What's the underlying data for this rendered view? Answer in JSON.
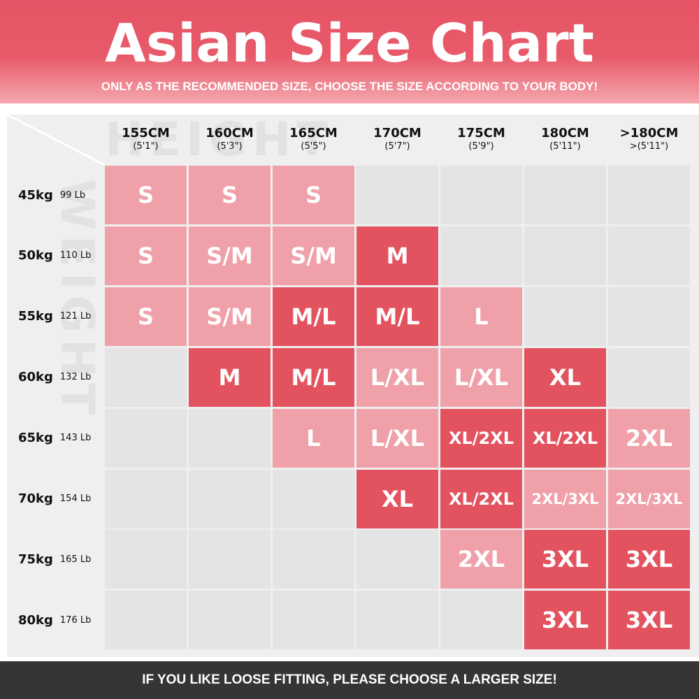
{
  "header": {
    "title": "Asian Size Chart",
    "subtitle": "ONLY AS THE RECOMMENDED SIZE, CHOOSE THE SIZE ACCORDING TO YOUR BODY!"
  },
  "watermarks": {
    "horizontal": "HEIGHT",
    "vertical": "WEIGHT"
  },
  "table": {
    "columns": [
      {
        "height": "155CM",
        "feet": "(5'1\")"
      },
      {
        "height": "160CM",
        "feet": "(5'3\")"
      },
      {
        "height": "165CM",
        "feet": "(5'5\")"
      },
      {
        "height": "170CM",
        "feet": "(5'7\")"
      },
      {
        "height": "175CM",
        "feet": "(5'9\")"
      },
      {
        "height": "180CM",
        "feet": "(5'11\")"
      },
      {
        "height": ">180CM",
        "feet": ">(5'11\")"
      }
    ],
    "rows": [
      {
        "weight": "45kg",
        "pounds": "99 Lb",
        "cells": [
          {
            "size": "S",
            "color": "#f0a0a8"
          },
          {
            "size": "S",
            "color": "#f0a0a8"
          },
          {
            "size": "S",
            "color": "#f0a0a8"
          },
          null,
          null,
          null,
          null
        ]
      },
      {
        "weight": "50kg",
        "pounds": "110 Lb",
        "cells": [
          {
            "size": "S",
            "color": "#f0a0a8"
          },
          {
            "size": "S/M",
            "color": "#f0a0a8"
          },
          {
            "size": "S/M",
            "color": "#f0a0a8"
          },
          {
            "size": "M",
            "color": "#e3535f"
          },
          null,
          null,
          null
        ]
      },
      {
        "weight": "55kg",
        "pounds": "121 Lb",
        "cells": [
          {
            "size": "S",
            "color": "#f0a0a8"
          },
          {
            "size": "S/M",
            "color": "#f0a0a8"
          },
          {
            "size": "M/L",
            "color": "#e3535f"
          },
          {
            "size": "M/L",
            "color": "#e3535f"
          },
          {
            "size": "L",
            "color": "#f0a0a8"
          },
          null,
          null
        ]
      },
      {
        "weight": "60kg",
        "pounds": "132 Lb",
        "cells": [
          null,
          {
            "size": "M",
            "color": "#e3535f"
          },
          {
            "size": "M/L",
            "color": "#e3535f"
          },
          {
            "size": "L/XL",
            "color": "#f0a0a8"
          },
          {
            "size": "L/XL",
            "color": "#f0a0a8"
          },
          {
            "size": "XL",
            "color": "#e3535f"
          },
          null
        ]
      },
      {
        "weight": "65kg",
        "pounds": "143 Lb",
        "cells": [
          null,
          null,
          {
            "size": "L",
            "color": "#f0a0a8"
          },
          {
            "size": "L/XL",
            "color": "#f0a0a8"
          },
          {
            "size": "XL/2XL",
            "color": "#e3535f"
          },
          {
            "size": "XL/2XL",
            "color": "#e3535f"
          },
          {
            "size": "2XL",
            "color": "#f0a0a8"
          }
        ]
      },
      {
        "weight": "70kg",
        "pounds": "154 Lb",
        "cells": [
          null,
          null,
          null,
          {
            "size": "XL",
            "color": "#e3535f"
          },
          {
            "size": "XL/2XL",
            "color": "#e3535f"
          },
          {
            "size": "2XL/3XL",
            "color": "#f0a0a8"
          },
          {
            "size": "2XL/3XL",
            "color": "#f0a0a8"
          }
        ]
      },
      {
        "weight": "75kg",
        "pounds": "165 Lb",
        "cells": [
          null,
          null,
          null,
          null,
          {
            "size": "2XL",
            "color": "#f0a0a8"
          },
          {
            "size": "3XL",
            "color": "#e3535f"
          },
          {
            "size": "3XL",
            "color": "#e3535f"
          }
        ]
      },
      {
        "weight": "80kg",
        "pounds": "176 Lb",
        "cells": [
          null,
          null,
          null,
          null,
          null,
          {
            "size": "3XL",
            "color": "#e3535f"
          },
          {
            "size": "3XL",
            "color": "#e3535f"
          }
        ]
      }
    ]
  },
  "footer": {
    "note": "IF YOU LIKE LOOSE FITTING, PLEASE CHOOSE A LARGER SIZE!"
  }
}
